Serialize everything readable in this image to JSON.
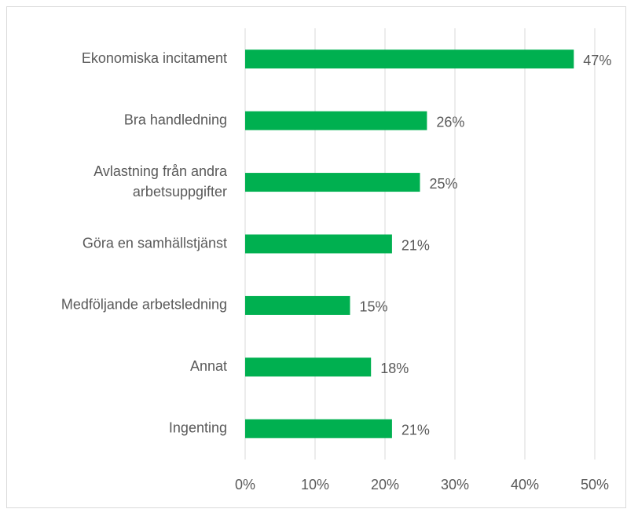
{
  "chart_data": {
    "type": "bar",
    "orientation": "horizontal",
    "categories": [
      "Ekonomiska incitament",
      "Bra handledning",
      "Avlastning från andra\narbetsuppgifter",
      "Göra en samhällstjänst",
      "Medföljande arbetsledning",
      "Annat",
      "Ingenting"
    ],
    "values": [
      47,
      26,
      25,
      21,
      15,
      18,
      21
    ],
    "value_labels": [
      "47%",
      "26%",
      "25%",
      "21%",
      "15%",
      "18%",
      "21%"
    ],
    "color": "#00b050",
    "xlim": [
      0,
      50
    ],
    "xticks": [
      {
        "value": 0,
        "label": "0%"
      },
      {
        "value": 10,
        "label": "10%"
      },
      {
        "value": 20,
        "label": "20%"
      },
      {
        "value": 30,
        "label": "30%"
      },
      {
        "value": 40,
        "label": "40%"
      },
      {
        "value": 50,
        "label": "50%"
      }
    ],
    "grid": true
  }
}
